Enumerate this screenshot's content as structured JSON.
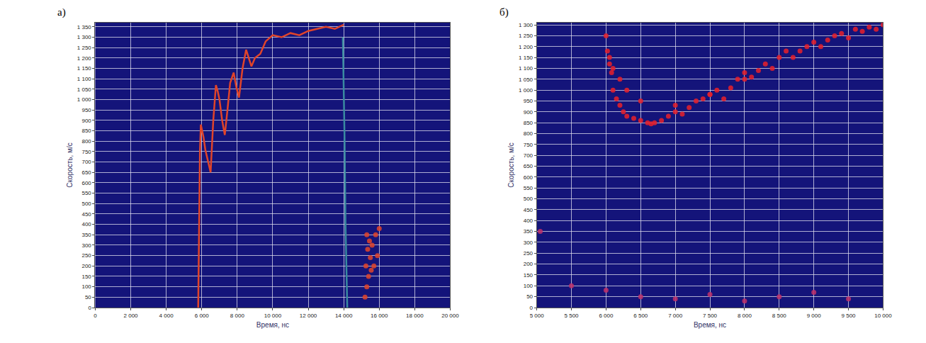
{
  "chart_data": [
    {
      "type": "scatter",
      "panel": "а)",
      "x_label": "Время, нс",
      "y_label": "Скорость, м/с",
      "grid": true,
      "xlim": [
        0,
        20000
      ],
      "xticks": [
        0,
        {
          "value": 2000,
          "label": "2 000"
        },
        {
          "value": 4000,
          "label": "4 000"
        },
        {
          "value": 6000,
          "label": "6 000"
        },
        {
          "value": 8000,
          "label": "8 000"
        },
        {
          "value": 10000,
          "label": "10 000"
        },
        {
          "value": 12000,
          "label": "12 000"
        },
        {
          "value": 14000,
          "label": "14 000"
        },
        {
          "value": 16000,
          "label": "16 000"
        },
        {
          "value": 18000,
          "label": "18 000"
        },
        {
          "value": 20000,
          "label": "20 000"
        }
      ],
      "ylim": [
        0,
        1370
      ],
      "yticks": [
        0,
        50,
        100,
        150,
        200,
        250,
        300,
        350,
        400,
        450,
        500,
        550,
        600,
        650,
        700,
        750,
        800,
        850,
        900,
        950,
        {
          "value": 1000,
          "label": "1 000"
        },
        {
          "value": 1050,
          "label": "1 050"
        },
        {
          "value": 1100,
          "label": "1 100"
        },
        {
          "value": 1150,
          "label": "1 150"
        },
        {
          "value": 1200,
          "label": "1 200"
        },
        {
          "value": 1250,
          "label": "1 250"
        },
        {
          "value": 1300,
          "label": "1 300"
        },
        {
          "value": 1350,
          "label": "1 350"
        }
      ],
      "series": [
        {
          "type": "line",
          "color": "#e0442a",
          "line_style": "solid",
          "x": [
            5800,
            5850,
            5900,
            5950,
            6000,
            6100,
            6200,
            6350,
            6500,
            6650,
            6800,
            6900,
            7000,
            7150,
            7300,
            7450,
            7600,
            7800,
            7950,
            8100,
            8300,
            8500,
            8650,
            8800,
            9000,
            9300,
            9600,
            10000,
            10500,
            11000,
            11500,
            12000,
            12500,
            13000,
            13500,
            13900,
            14000
          ],
          "values": [
            0,
            400,
            750,
            880,
            860,
            820,
            760,
            700,
            650,
            900,
            1070,
            1040,
            1000,
            900,
            830,
            950,
            1080,
            1130,
            1060,
            1010,
            1150,
            1240,
            1200,
            1160,
            1200,
            1220,
            1280,
            1310,
            1300,
            1320,
            1310,
            1330,
            1340,
            1350,
            1340,
            1355,
            1360
          ]
        },
        {
          "type": "line",
          "color": "#3a8aa0",
          "line_style": "solid",
          "x": [
            13950,
            14000,
            14050,
            14100,
            14200
          ],
          "values": [
            1300,
            1100,
            800,
            400,
            0
          ]
        },
        {
          "type": "scatter",
          "color": "#e0442a",
          "marker": "circle",
          "x": [
            15200,
            15250,
            15300,
            15300,
            15350,
            15400,
            15450,
            15500,
            15550,
            15600,
            15700,
            15800,
            15900,
            16000
          ],
          "values": [
            50,
            200,
            350,
            100,
            280,
            150,
            320,
            240,
            180,
            300,
            200,
            350,
            250,
            380
          ]
        }
      ]
    },
    {
      "type": "scatter",
      "panel": "б)",
      "x_label": "Время, нс",
      "y_label": "Скорость, м/с",
      "grid": true,
      "xlim": [
        5000,
        10000
      ],
      "xticks": [
        {
          "value": 5000,
          "label": "5 000"
        },
        {
          "value": 5500,
          "label": "5 500"
        },
        {
          "value": 6000,
          "label": "6 000"
        },
        {
          "value": 6500,
          "label": "6 500"
        },
        {
          "value": 7000,
          "label": "7 000"
        },
        {
          "value": 7500,
          "label": "7 500"
        },
        {
          "value": 8000,
          "label": "8 000"
        },
        {
          "value": 8500,
          "label": "8 500"
        },
        {
          "value": 9000,
          "label": "9 000"
        },
        {
          "value": 9500,
          "label": "9 500"
        },
        {
          "value": 10000,
          "label": "10 000"
        }
      ],
      "ylim": [
        0,
        1310
      ],
      "yticks": [
        0,
        50,
        100,
        150,
        200,
        250,
        300,
        350,
        400,
        450,
        500,
        550,
        600,
        650,
        700,
        750,
        800,
        850,
        900,
        950,
        {
          "value": 1000,
          "label": "1 000"
        },
        {
          "value": 1050,
          "label": "1 050"
        },
        {
          "value": 1100,
          "label": "1 100"
        },
        {
          "value": 1150,
          "label": "1 150"
        },
        {
          "value": 1200,
          "label": "1 200"
        },
        {
          "value": 1250,
          "label": "1 250"
        },
        {
          "value": 1300,
          "label": "1 300"
        }
      ],
      "series": [
        {
          "type": "scatter",
          "color": "#e8202a",
          "marker": "circle",
          "x": [
            6000,
            6020,
            6050,
            6080,
            6100,
            6150,
            6200,
            6250,
            6300,
            6400,
            6500,
            6600,
            6650,
            6700,
            6800,
            6900,
            7000,
            7100,
            7200,
            7300,
            7400,
            7500,
            7600,
            7700,
            7800,
            7900,
            8000,
            8100,
            8200,
            8300,
            8400,
            8500,
            8600,
            8700,
            8800,
            8900,
            9000,
            9100,
            9200,
            9300,
            9400,
            9500,
            9600,
            9700,
            9800,
            9900,
            10000
          ],
          "values": [
            1250,
            1180,
            1120,
            1080,
            1000,
            960,
            930,
            900,
            880,
            870,
            860,
            850,
            845,
            850,
            860,
            880,
            900,
            890,
            920,
            950,
            960,
            980,
            1000,
            960,
            1010,
            1050,
            1080,
            1060,
            1090,
            1120,
            1100,
            1150,
            1180,
            1150,
            1180,
            1200,
            1220,
            1200,
            1230,
            1250,
            1260,
            1240,
            1280,
            1270,
            1290,
            1280,
            1300
          ]
        },
        {
          "type": "scatter",
          "color": "#e8202a",
          "marker": "circle",
          "x": [
            6050,
            6100,
            6200,
            6300,
            6500,
            7000,
            7500,
            8000
          ],
          "values": [
            1150,
            1100,
            1050,
            1000,
            950,
            930,
            980,
            1050
          ]
        },
        {
          "type": "scatter",
          "color": "#c0306a",
          "marker": "circle",
          "x": [
            5050,
            5500,
            6000,
            6500,
            7000,
            7500,
            8000,
            8500,
            9000,
            9500
          ],
          "values": [
            350,
            100,
            80,
            50,
            40,
            60,
            30,
            50,
            70,
            40
          ]
        }
      ]
    }
  ]
}
